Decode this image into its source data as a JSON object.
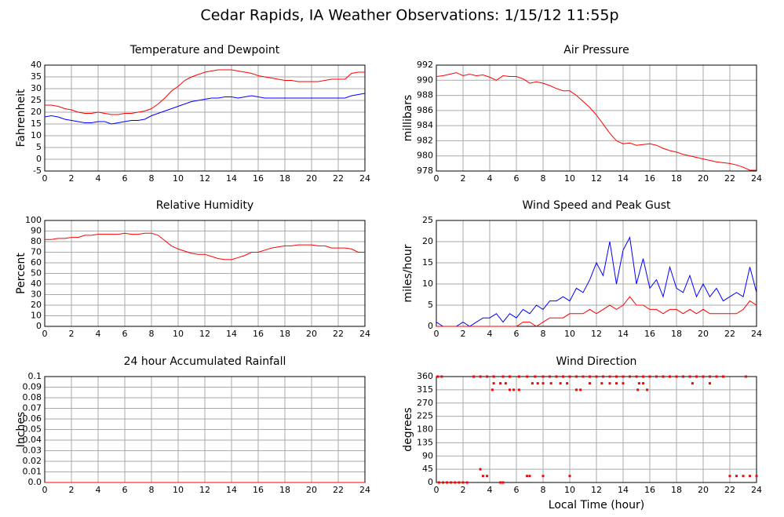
{
  "title": "Cedar Rapids, IA Weather Observations: 1/15/12 11:55p",
  "chart_data": [
    {
      "type": "line",
      "title": "Temperature and Dewpoint",
      "ylabel": "Fahrenheit",
      "grid": true,
      "x": [
        0,
        0.5,
        1,
        1.5,
        2,
        2.5,
        3,
        3.5,
        4,
        4.5,
        5,
        5.5,
        6,
        6.5,
        7,
        7.5,
        8,
        8.5,
        9,
        9.5,
        10,
        10.5,
        11,
        11.5,
        12,
        12.5,
        13,
        13.5,
        14,
        14.5,
        15,
        15.5,
        16,
        16.5,
        17,
        17.5,
        18,
        18.5,
        19,
        19.5,
        20,
        20.5,
        21,
        21.5,
        22,
        22.5,
        23,
        23.5,
        24
      ],
      "series": [
        {
          "color": "#ff0000",
          "values": [
            23,
            23,
            22.5,
            21.5,
            21,
            20,
            19.5,
            19.5,
            20,
            19.5,
            19,
            19,
            19.5,
            19.5,
            20,
            20.5,
            21.5,
            23.5,
            26,
            29,
            31,
            33.5,
            35,
            36,
            37,
            37.5,
            38,
            38,
            38,
            37.5,
            37,
            36.5,
            35.5,
            35,
            34.5,
            34,
            33.5,
            33.5,
            33,
            33,
            33,
            33,
            33.5,
            34,
            34,
            34,
            36.5,
            37,
            37
          ]
        },
        {
          "color": "#0000ff",
          "values": [
            18,
            18.5,
            18,
            17,
            16.5,
            16,
            15.5,
            15.5,
            16,
            16,
            15,
            15.5,
            16,
            16.5,
            16.5,
            17,
            18.5,
            19.5,
            20.5,
            21.5,
            22.5,
            23.5,
            24.5,
            25,
            25.5,
            26,
            26,
            26.5,
            26.5,
            26,
            26.5,
            27,
            26.5,
            26,
            26,
            26,
            26,
            26,
            26,
            26,
            26,
            26,
            26,
            26,
            26,
            26,
            27,
            27.5,
            28
          ]
        }
      ],
      "xlim": [
        0,
        24
      ],
      "xticks": [
        0,
        2,
        4,
        6,
        8,
        10,
        12,
        14,
        16,
        18,
        20,
        22,
        24
      ],
      "ylim": [
        -5,
        40
      ],
      "yticks": [
        -5,
        0,
        5,
        10,
        15,
        20,
        25,
        30,
        35,
        40
      ]
    },
    {
      "type": "line",
      "title": "Air Pressure",
      "ylabel": "millibars",
      "grid": true,
      "x": [
        0,
        0.5,
        1,
        1.5,
        2,
        2.5,
        3,
        3.5,
        4,
        4.5,
        5,
        5.5,
        6,
        6.5,
        7,
        7.5,
        8,
        8.5,
        9,
        9.5,
        10,
        10.5,
        11,
        11.5,
        12,
        12.5,
        13,
        13.5,
        14,
        14.5,
        15,
        15.5,
        16,
        16.5,
        17,
        17.5,
        18,
        18.5,
        19,
        19.5,
        20,
        20.5,
        21,
        21.5,
        22,
        22.5,
        23,
        23.5,
        24
      ],
      "series": [
        {
          "color": "#ff0000",
          "values": [
            990.5,
            990.6,
            990.8,
            991,
            990.6,
            990.8,
            990.6,
            990.7,
            990.4,
            990,
            990.6,
            990.5,
            990.5,
            990.2,
            989.6,
            989.8,
            989.6,
            989.3,
            988.9,
            988.6,
            988.6,
            988,
            987.2,
            986.4,
            985.4,
            984.2,
            983,
            982,
            981.6,
            981.7,
            981.4,
            981.5,
            981.6,
            981.4,
            981,
            980.7,
            980.5,
            980.2,
            980,
            979.8,
            979.6,
            979.4,
            979.2,
            979.1,
            979,
            978.8,
            978.5,
            978.1,
            978.1
          ]
        }
      ],
      "xlim": [
        0,
        24
      ],
      "xticks": [
        0,
        2,
        4,
        6,
        8,
        10,
        12,
        14,
        16,
        18,
        20,
        22,
        24
      ],
      "ylim": [
        978,
        992
      ],
      "yticks": [
        978,
        980,
        982,
        984,
        986,
        988,
        990,
        992
      ]
    },
    {
      "type": "line",
      "title": "Relative Humidity",
      "ylabel": "Percent",
      "grid": true,
      "x": [
        0,
        0.5,
        1,
        1.5,
        2,
        2.5,
        3,
        3.5,
        4,
        4.5,
        5,
        5.5,
        6,
        6.5,
        7,
        7.5,
        8,
        8.5,
        9,
        9.5,
        10,
        10.5,
        11,
        11.5,
        12,
        12.5,
        13,
        13.5,
        14,
        14.5,
        15,
        15.5,
        16,
        16.5,
        17,
        17.5,
        18,
        18.5,
        19,
        19.5,
        20,
        20.5,
        21,
        21.5,
        22,
        22.5,
        23,
        23.5,
        24
      ],
      "series": [
        {
          "color": "#ff0000",
          "values": [
            82,
            82,
            83,
            83,
            84,
            84,
            86,
            86,
            87,
            87,
            87,
            87,
            88,
            87,
            87,
            88,
            88,
            86,
            81,
            76,
            73,
            71,
            69,
            68,
            68,
            66,
            64,
            63,
            63,
            65,
            67,
            70,
            70,
            72,
            74,
            75,
            76,
            76,
            77,
            77,
            77,
            76,
            76,
            74,
            74,
            74,
            73,
            70,
            70
          ]
        }
      ],
      "xlim": [
        0,
        24
      ],
      "xticks": [
        0,
        2,
        4,
        6,
        8,
        10,
        12,
        14,
        16,
        18,
        20,
        22,
        24
      ],
      "ylim": [
        0,
        100
      ],
      "yticks": [
        0,
        10,
        20,
        30,
        40,
        50,
        60,
        70,
        80,
        90,
        100
      ]
    },
    {
      "type": "line",
      "title": "Wind Speed and Peak Gust",
      "ylabel": "miles/hour",
      "grid": true,
      "x": [
        0,
        0.5,
        1,
        1.5,
        2,
        2.5,
        3,
        3.5,
        4,
        4.5,
        5,
        5.5,
        6,
        6.5,
        7,
        7.5,
        8,
        8.5,
        9,
        9.5,
        10,
        10.5,
        11,
        11.5,
        12,
        12.5,
        13,
        13.5,
        14,
        14.5,
        15,
        15.5,
        16,
        16.5,
        17,
        17.5,
        18,
        18.5,
        19,
        19.5,
        20,
        20.5,
        21,
        21.5,
        22,
        22.5,
        23,
        23.5,
        24
      ],
      "series": [
        {
          "color": "#0000ff",
          "values": [
            1,
            0,
            0,
            0,
            1,
            0,
            1,
            2,
            2,
            3,
            1,
            3,
            2,
            4,
            3,
            5,
            4,
            6,
            6,
            7,
            6,
            9,
            8,
            11,
            15,
            12,
            20,
            10,
            18,
            21,
            10,
            16,
            9,
            11,
            7,
            14,
            9,
            8,
            12,
            7,
            10,
            7,
            9,
            6,
            7,
            8,
            7,
            14,
            8
          ]
        },
        {
          "color": "#ff0000",
          "values": [
            0,
            0,
            0,
            0,
            0,
            0,
            0,
            0,
            0,
            0,
            0,
            0,
            0,
            1,
            1,
            0,
            1,
            2,
            2,
            2,
            3,
            3,
            3,
            4,
            3,
            4,
            5,
            4,
            5,
            7,
            5,
            5,
            4,
            4,
            3,
            4,
            4,
            3,
            4,
            3,
            4,
            3,
            3,
            3,
            3,
            3,
            4,
            6,
            5
          ]
        }
      ],
      "xlim": [
        0,
        24
      ],
      "xticks": [
        0,
        2,
        4,
        6,
        8,
        10,
        12,
        14,
        16,
        18,
        20,
        22,
        24
      ],
      "ylim": [
        0,
        25
      ],
      "yticks": [
        0,
        5,
        10,
        15,
        20,
        25
      ]
    },
    {
      "type": "line",
      "title": "24 hour Accumulated Rainfall",
      "ylabel": "Inches",
      "grid": true,
      "x": [
        0,
        24
      ],
      "series": [
        {
          "color": "#ff0000",
          "values": [
            0,
            0
          ]
        }
      ],
      "xlim": [
        0,
        24
      ],
      "xticks": [
        0,
        2,
        4,
        6,
        8,
        10,
        12,
        14,
        16,
        18,
        20,
        22,
        24
      ],
      "ylim": [
        0,
        0.1
      ],
      "yticks": [
        {
          "value": 0,
          "label": "0.0"
        },
        0.01,
        0.02,
        0.03,
        0.04,
        0.05,
        0.06,
        0.07,
        0.08,
        0.09,
        0.1
      ]
    },
    {
      "type": "scatter",
      "title": "Wind Direction",
      "ylabel": "degrees",
      "xlabel": "Local Time (hour)",
      "grid": true,
      "series": [
        {
          "color": "#ff0000",
          "x": [
            0.2,
            0.5,
            0.8,
            1.1,
            1.4,
            1.7,
            2.0,
            2.3,
            0.1,
            0.4,
            2.8,
            3.3,
            3.8,
            4.3,
            5.0,
            5.5,
            6.2,
            6.8,
            7.4,
            8.0,
            8.5,
            9.0,
            9.5,
            10.0,
            10.5,
            11.0,
            11.5,
            12,
            12.5,
            13,
            13.5,
            14,
            14.5,
            15,
            15.5,
            16,
            16.5,
            17,
            17.5,
            18,
            18.5,
            19,
            19.5,
            20,
            20.5,
            21,
            21.5,
            23.2,
            4.3,
            4.8,
            5.2,
            7.2,
            7.6,
            8.0,
            8.6,
            9.3,
            9.8,
            11.5,
            12.4,
            13.0,
            13.5,
            14.0,
            15.2,
            15.5,
            19.2,
            20.5,
            4.2,
            5.5,
            5.8,
            6.2,
            10.5,
            10.8,
            15.1,
            15.8,
            3.3,
            3.5,
            3.8,
            4.8,
            5.0,
            6.8,
            7.0,
            8.0,
            10.0,
            22.0,
            22.5,
            23.0,
            23.5,
            24.0
          ],
          "values": [
            0,
            0,
            0,
            0,
            0,
            0,
            0,
            0,
            360,
            360,
            360,
            360,
            360,
            360,
            360,
            360,
            360,
            360,
            360,
            360,
            360,
            360,
            360,
            360,
            360,
            360,
            360,
            360,
            360,
            360,
            360,
            360,
            360,
            360,
            360,
            360,
            360,
            360,
            360,
            360,
            360,
            360,
            360,
            360,
            360,
            360,
            360,
            360,
            337,
            337,
            337,
            337,
            337,
            337,
            337,
            337,
            337,
            337,
            337,
            337,
            337,
            337,
            337,
            337,
            337,
            337,
            315,
            315,
            315,
            315,
            315,
            315,
            315,
            315,
            45,
            22,
            22,
            0,
            0,
            22,
            22,
            22,
            22,
            22,
            22,
            22,
            22,
            22
          ]
        }
      ],
      "xlim": [
        0,
        24
      ],
      "xticks": [
        0,
        2,
        4,
        6,
        8,
        10,
        12,
        14,
        16,
        18,
        20,
        22,
        24
      ],
      "ylim": [
        0,
        360
      ],
      "yticks": [
        0,
        45,
        90,
        135,
        180,
        225,
        270,
        315,
        360
      ]
    }
  ]
}
